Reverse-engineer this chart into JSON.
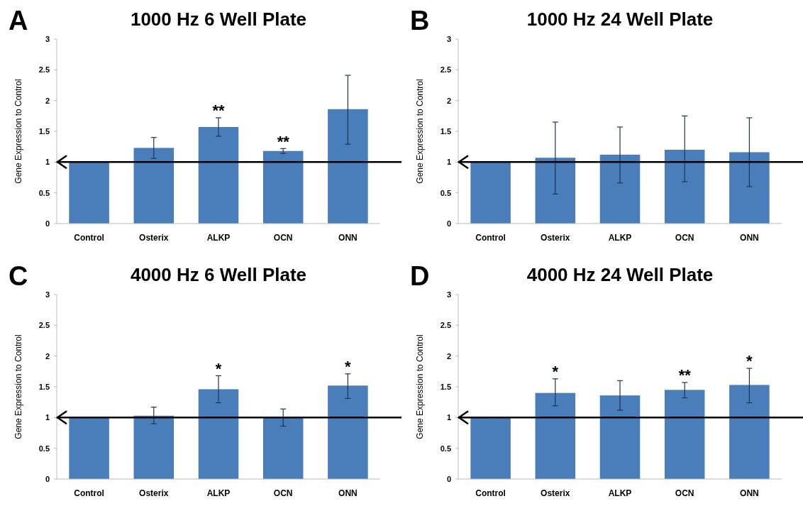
{
  "chart_data": [
    {
      "type": "bar",
      "title": "1000 Hz 6 Well Plate",
      "ylabel": "Gene Expression to Control",
      "categories": [
        "Control",
        "Osterix",
        "ALKP",
        "OCN",
        "ONN"
      ],
      "values": [
        1,
        1.23,
        1.57,
        1.18,
        1.86
      ],
      "errors": [
        null,
        0.17,
        0.15,
        0.04,
        [
          1.29,
          2.41
        ]
      ],
      "color": "#4a7ebb",
      "ylim": [
        0,
        3
      ],
      "yticks": [
        0,
        0.5,
        1,
        1.5,
        2,
        2.5,
        3
      ],
      "ref_lines": [
        {
          "axis": "y",
          "value": 1,
          "color": "#000000"
        }
      ],
      "annotations": [
        "A",
        {
          "text": "**",
          "x": "ALKP",
          "y": 1.57
        },
        {
          "text": "**",
          "x": "OCN",
          "y": 1.18
        }
      ]
    },
    {
      "type": "bar",
      "title": "1000 Hz 24 Well Plate",
      "ylabel": "Gene Expression to Control",
      "categories": [
        "Control",
        "Osterix",
        "ALKP",
        "OCN",
        "ONN"
      ],
      "values": [
        1,
        1.07,
        1.12,
        1.2,
        1.16
      ],
      "errors": [
        null,
        [
          0.48,
          1.65
        ],
        [
          0.66,
          1.57
        ],
        [
          0.68,
          1.75
        ],
        [
          0.6,
          1.72
        ]
      ],
      "color": "#4a7ebb",
      "ylim": [
        0,
        3
      ],
      "yticks": [
        0,
        0.5,
        1,
        1.5,
        2,
        2.5,
        3
      ],
      "ref_lines": [
        {
          "axis": "y",
          "value": 1,
          "color": "#000000"
        }
      ],
      "annotations": [
        "B"
      ]
    },
    {
      "type": "bar",
      "title": "4000 Hz 6 Well Plate",
      "ylabel": "Gene Expression to Control",
      "categories": [
        "Control",
        "Osterix",
        "ALKP",
        "OCN",
        "ONN"
      ],
      "values": [
        1,
        1.03,
        1.46,
        1,
        1.52
      ],
      "errors": [
        null,
        [
          0.9,
          1.17
        ],
        [
          1.24,
          1.68
        ],
        [
          0.86,
          1.14
        ],
        [
          1.31,
          1.71
        ]
      ],
      "color": "#4a7ebb",
      "ylim": [
        0,
        3
      ],
      "yticks": [
        0,
        0.5,
        1,
        1.5,
        2,
        2.5,
        3
      ],
      "ref_lines": [
        {
          "axis": "y",
          "value": 1,
          "color": "#000000"
        }
      ],
      "annotations": [
        "C",
        {
          "text": "*",
          "x": "ALKP",
          "y": 1.46
        },
        {
          "text": "*",
          "x": "ONN",
          "y": 1.52
        }
      ]
    },
    {
      "type": "bar",
      "title": "4000 Hz 24 Well Plate",
      "ylabel": "Gene Expression to Control",
      "categories": [
        "Control",
        "Osterix",
        "ALKP",
        "OCN",
        "ONN"
      ],
      "values": [
        1,
        1.4,
        1.36,
        1.45,
        1.53
      ],
      "errors": [
        null,
        [
          1.19,
          1.63
        ],
        [
          1.12,
          1.6
        ],
        [
          1.32,
          1.57
        ],
        [
          1.24,
          1.8
        ]
      ],
      "color": "#4a7ebb",
      "ylim": [
        0,
        3
      ],
      "yticks": [
        0,
        0.5,
        1,
        1.5,
        2,
        2.5,
        3
      ],
      "ref_lines": [
        {
          "axis": "y",
          "value": 1,
          "color": "#000000"
        }
      ],
      "annotations": [
        "D",
        {
          "text": "*",
          "x": "Osterix",
          "y": 1.4
        },
        {
          "text": "**",
          "x": "OCN",
          "y": 1.45
        },
        {
          "text": "*",
          "x": "ONN",
          "y": 1.53
        }
      ]
    }
  ]
}
